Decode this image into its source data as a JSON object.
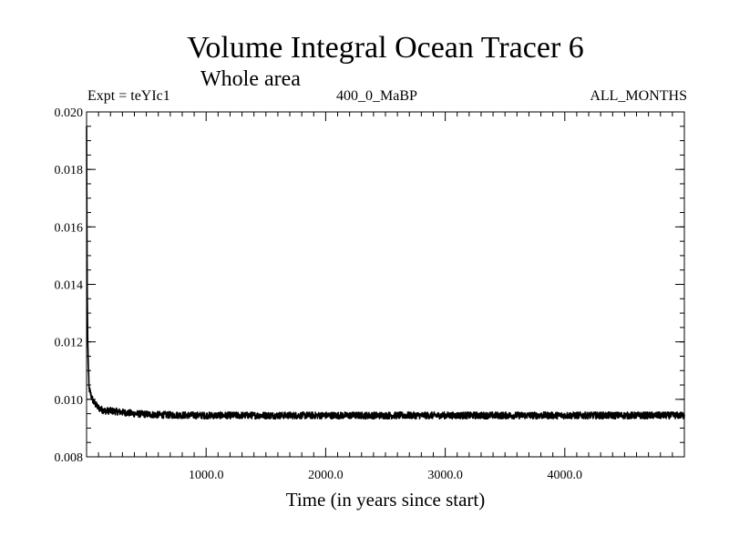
{
  "chart_data": {
    "type": "line",
    "title": "Volume Integral Ocean Tracer 6",
    "subtitle": "Whole area",
    "annotations": {
      "left": "Expt = teYIc1",
      "center": "400_0_MaBP",
      "right": "ALL_MONTHS"
    },
    "xlabel": "Time (in years since start)",
    "ylabel": "",
    "xlim": [
      0,
      5000
    ],
    "ylim": [
      0.008,
      0.02
    ],
    "xticks": [
      1000,
      2000,
      3000,
      4000
    ],
    "xtick_labels": [
      "1000.0",
      "2000.0",
      "3000.0",
      "4000.0"
    ],
    "yticks": [
      0.008,
      0.01,
      0.012,
      0.014,
      0.016,
      0.018,
      0.02
    ],
    "ytick_labels": [
      "0.008",
      "0.010",
      "0.012",
      "0.014",
      "0.016",
      "0.018",
      "0.020"
    ],
    "grid": false,
    "legend": "none",
    "line_color": "#000000",
    "noise_amplitude": 0.00012,
    "series": [
      {
        "x": [
          0,
          2,
          5,
          10,
          20,
          40,
          60,
          80,
          100,
          150,
          200,
          300,
          400,
          500,
          600,
          800,
          1000,
          1500,
          2000,
          2500,
          3000,
          3500,
          4000,
          4500,
          5000
        ],
        "values": [
          0.0195,
          0.017,
          0.014,
          0.012,
          0.0104,
          0.0101,
          0.0099,
          0.0098,
          0.0097,
          0.0096,
          0.0096,
          0.00955,
          0.0095,
          0.00948,
          0.00946,
          0.00945,
          0.00944,
          0.00944,
          0.00944,
          0.00944,
          0.00944,
          0.00944,
          0.00944,
          0.00944,
          0.00944
        ]
      }
    ]
  }
}
